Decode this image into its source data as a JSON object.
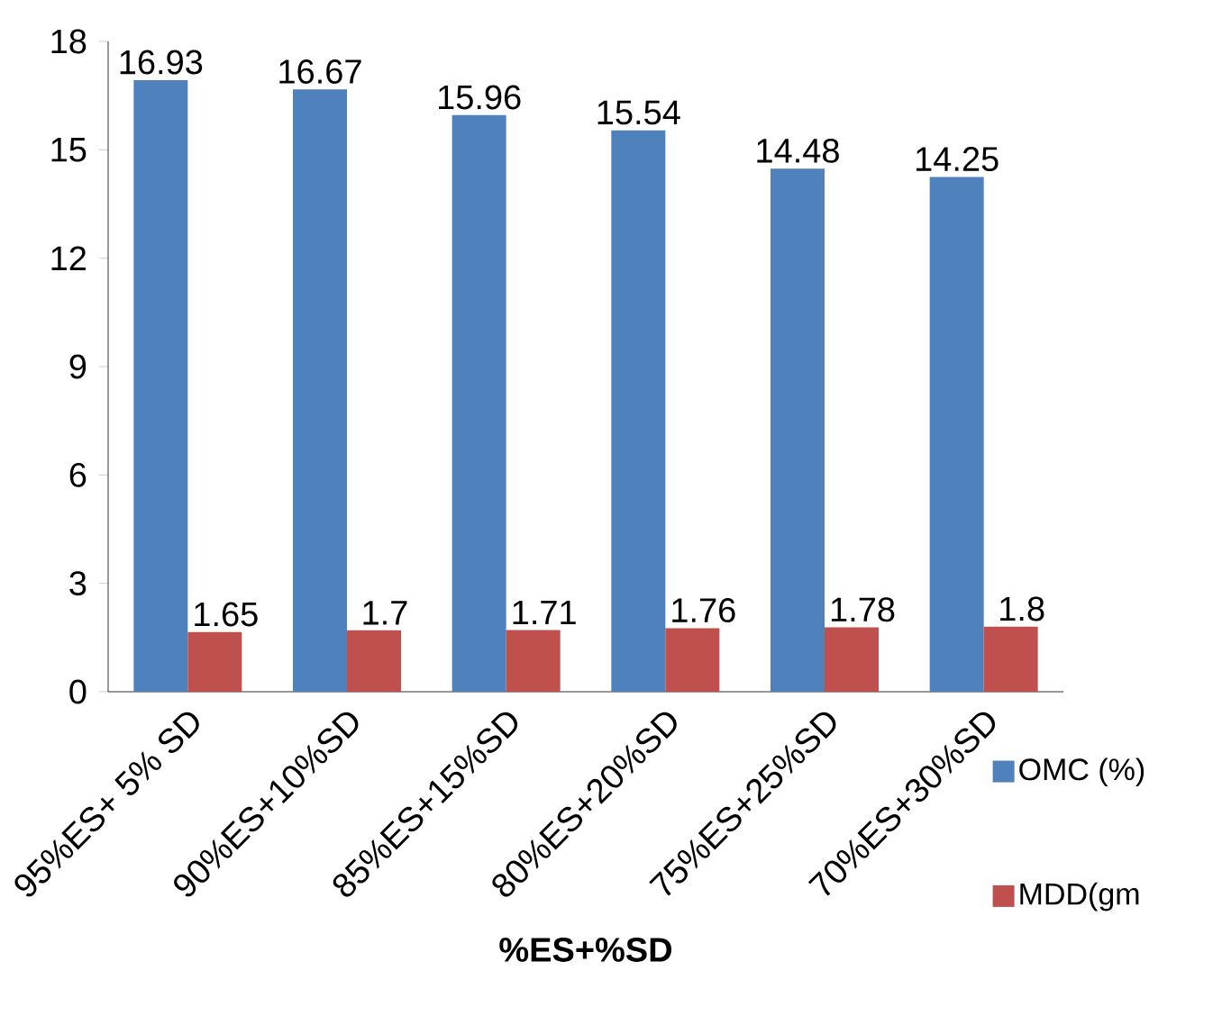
{
  "chart_data": {
    "type": "bar",
    "xlabel": "%ES+%SD",
    "categories": [
      "95%ES+ 5% SD",
      "90%ES+10%SD",
      "85%ES+15%SD",
      "80%ES+20%SD",
      "75%ES+25%SD",
      "70%ES+30%SD"
    ],
    "series": [
      {
        "name": "OMC (%)",
        "color": "#4f81bd",
        "values": [
          16.93,
          16.67,
          15.96,
          15.54,
          14.48,
          14.25
        ]
      },
      {
        "name": "MDD(gm",
        "color": "#c0504d",
        "values": [
          1.65,
          1.7,
          1.71,
          1.76,
          1.78,
          1.8
        ]
      }
    ],
    "ylim": [
      0,
      18
    ],
    "yticks": [
      0,
      3,
      6,
      9,
      12,
      15,
      18
    ],
    "data_labels": true,
    "legend": "bottom right",
    "grid": false
  }
}
